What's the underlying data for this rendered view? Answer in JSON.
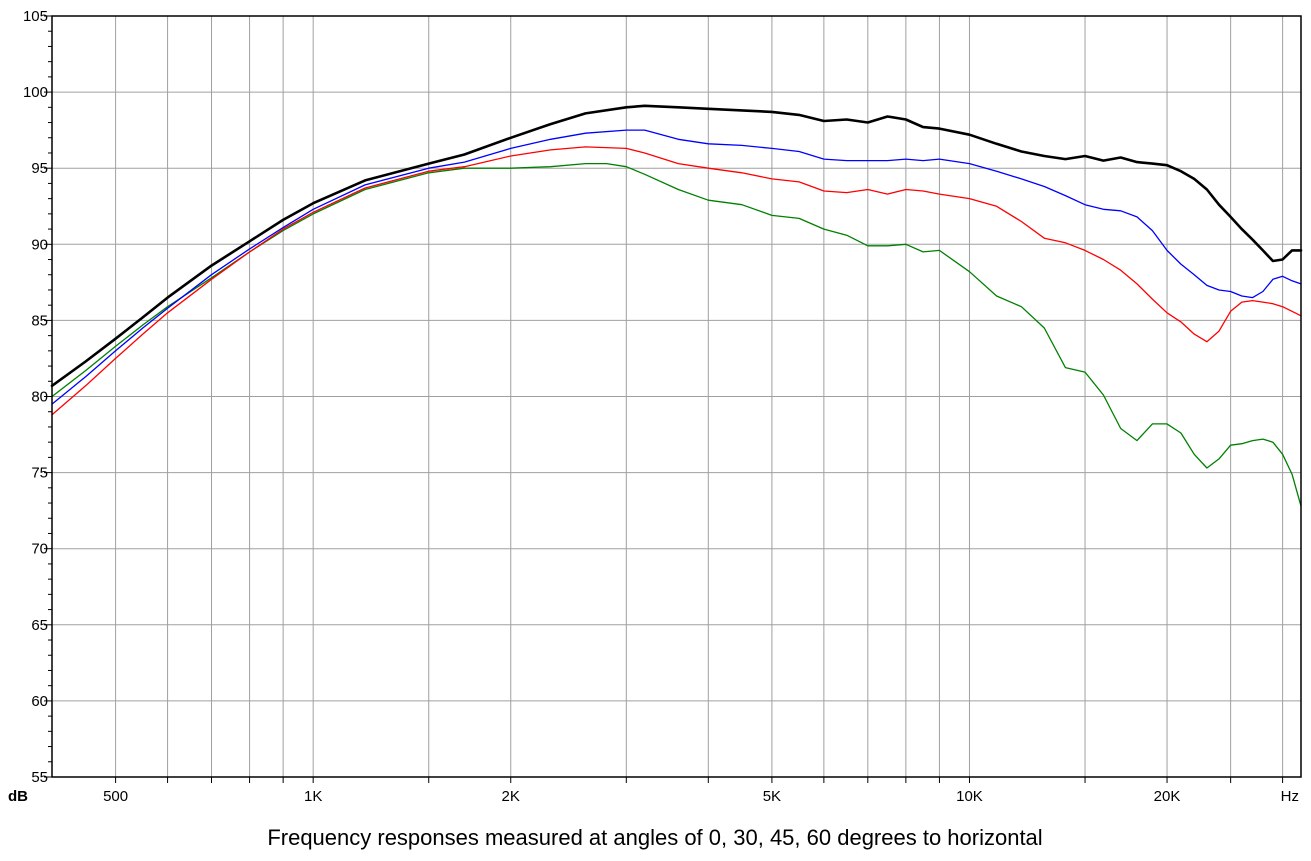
{
  "chart_data": {
    "type": "line",
    "caption": "Frequency responses measured at angles of 0, 30, 45, 60 degrees to horizontal",
    "y_unit": "dB",
    "x_unit": "Hz",
    "x_scale": "log",
    "xlim": [
      400,
      32000
    ],
    "ylim": [
      55,
      105
    ],
    "grid": true,
    "legend": "none",
    "y_ticks": [
      55,
      60,
      65,
      70,
      75,
      80,
      85,
      90,
      95,
      100,
      105
    ],
    "y_tick_labels": [
      "55",
      "60",
      "65",
      "70",
      "75",
      "80",
      "85",
      "90",
      "95",
      "100",
      "105"
    ],
    "x_major_ticks": [
      500,
      1000,
      2000,
      5000,
      10000,
      20000
    ],
    "x_major_tick_labels": [
      "500",
      "1K",
      "2K",
      "5K",
      "10K",
      "20K"
    ],
    "x_minor_gridlines": [
      600,
      700,
      800,
      900,
      1500,
      3000,
      4000,
      6000,
      7000,
      8000,
      9000,
      15000,
      25000,
      30000
    ],
    "series": [
      {
        "color": "#000000",
        "x": [
          400,
          450,
          500,
          550,
          600,
          700,
          800,
          900,
          1000,
          1200,
          1500,
          1700,
          2000,
          2300,
          2600,
          3000,
          3200,
          3600,
          4000,
          4500,
          5000,
          5500,
          6000,
          6500,
          7000,
          7500,
          8000,
          8500,
          9000,
          10000,
          11000,
          12000,
          13000,
          14000,
          15000,
          16000,
          17000,
          18000,
          19000,
          20000,
          21000,
          22000,
          23000,
          24000,
          25000,
          26000,
          27000,
          28000,
          29000,
          30000,
          31000,
          32000
        ],
        "values": [
          80.7,
          82.3,
          83.8,
          85.2,
          86.5,
          88.6,
          90.2,
          91.6,
          92.7,
          94.2,
          95.3,
          95.9,
          97.0,
          97.9,
          98.6,
          99.0,
          99.1,
          99.0,
          98.9,
          98.8,
          98.7,
          98.5,
          98.1,
          98.2,
          98.0,
          98.4,
          98.2,
          97.7,
          97.6,
          97.2,
          96.6,
          96.1,
          95.8,
          95.6,
          95.8,
          95.5,
          95.7,
          95.4,
          95.3,
          95.2,
          94.8,
          94.3,
          93.6,
          92.6,
          91.8,
          91.0,
          90.3,
          89.6,
          88.9,
          89.0,
          89.6,
          89.6
        ]
      },
      {
        "color": "#0000ff",
        "x": [
          400,
          450,
          500,
          550,
          600,
          700,
          800,
          900,
          1000,
          1200,
          1500,
          1700,
          2000,
          2300,
          2600,
          3000,
          3200,
          3600,
          4000,
          4500,
          5000,
          5500,
          6000,
          6500,
          7000,
          7500,
          8000,
          8500,
          9000,
          10000,
          11000,
          12000,
          13000,
          14000,
          15000,
          16000,
          17000,
          18000,
          19000,
          20000,
          21000,
          22000,
          23000,
          24000,
          25000,
          26000,
          27000,
          28000,
          29000,
          30000,
          31000,
          32000
        ],
        "values": [
          79.5,
          81.3,
          83.0,
          84.5,
          85.8,
          88.0,
          89.7,
          91.1,
          92.3,
          93.9,
          95.0,
          95.4,
          96.3,
          96.9,
          97.3,
          97.5,
          97.5,
          96.9,
          96.6,
          96.5,
          96.3,
          96.1,
          95.6,
          95.5,
          95.5,
          95.5,
          95.6,
          95.5,
          95.6,
          95.3,
          94.8,
          94.3,
          93.8,
          93.2,
          92.6,
          92.3,
          92.2,
          91.8,
          90.9,
          89.6,
          88.7,
          88.0,
          87.3,
          87.0,
          86.9,
          86.6,
          86.5,
          86.9,
          87.7,
          87.9,
          87.6,
          87.4
        ]
      },
      {
        "color": "#ff0000",
        "x": [
          400,
          450,
          500,
          550,
          600,
          700,
          800,
          900,
          1000,
          1200,
          1500,
          1700,
          2000,
          2300,
          2600,
          3000,
          3200,
          3600,
          4000,
          4500,
          5000,
          5500,
          6000,
          6500,
          7000,
          7500,
          8000,
          8500,
          9000,
          10000,
          11000,
          12000,
          13000,
          14000,
          15000,
          16000,
          17000,
          18000,
          19000,
          20000,
          21000,
          22000,
          23000,
          24000,
          25000,
          26000,
          27000,
          28000,
          29000,
          30000,
          31000,
          32000
        ],
        "values": [
          78.8,
          80.7,
          82.5,
          84.1,
          85.5,
          87.7,
          89.5,
          91.0,
          92.1,
          93.7,
          94.8,
          95.1,
          95.8,
          96.2,
          96.4,
          96.3,
          96.0,
          95.3,
          95.0,
          94.7,
          94.3,
          94.1,
          93.5,
          93.4,
          93.6,
          93.3,
          93.6,
          93.5,
          93.3,
          93.0,
          92.5,
          91.5,
          90.4,
          90.1,
          89.6,
          89.0,
          88.3,
          87.4,
          86.4,
          85.5,
          84.9,
          84.1,
          83.6,
          84.3,
          85.6,
          86.2,
          86.3,
          86.2,
          86.1,
          85.9,
          85.6,
          85.3
        ]
      },
      {
        "color": "#008000",
        "x": [
          400,
          450,
          500,
          550,
          600,
          700,
          800,
          900,
          1000,
          1200,
          1500,
          1700,
          2000,
          2300,
          2600,
          2800,
          3000,
          3200,
          3600,
          4000,
          4500,
          5000,
          5500,
          6000,
          6500,
          7000,
          7500,
          8000,
          8500,
          9000,
          10000,
          11000,
          12000,
          13000,
          14000,
          15000,
          16000,
          17000,
          18000,
          19000,
          20000,
          21000,
          22000,
          23000,
          24000,
          25000,
          26000,
          27000,
          28000,
          29000,
          30000,
          31000,
          32000
        ],
        "values": [
          80.0,
          81.7,
          83.3,
          84.7,
          85.9,
          87.8,
          89.5,
          90.9,
          92.0,
          93.6,
          94.7,
          95.0,
          95.0,
          95.1,
          95.3,
          95.3,
          95.1,
          94.6,
          93.6,
          92.9,
          92.6,
          91.9,
          91.7,
          91.0,
          90.6,
          89.9,
          89.9,
          90.0,
          89.5,
          89.6,
          88.2,
          86.6,
          85.9,
          84.5,
          81.9,
          81.6,
          80.1,
          77.9,
          77.1,
          78.2,
          78.2,
          77.6,
          76.2,
          75.3,
          75.9,
          76.8,
          76.9,
          77.1,
          77.2,
          77.0,
          76.2,
          74.9,
          72.8
        ]
      }
    ]
  }
}
